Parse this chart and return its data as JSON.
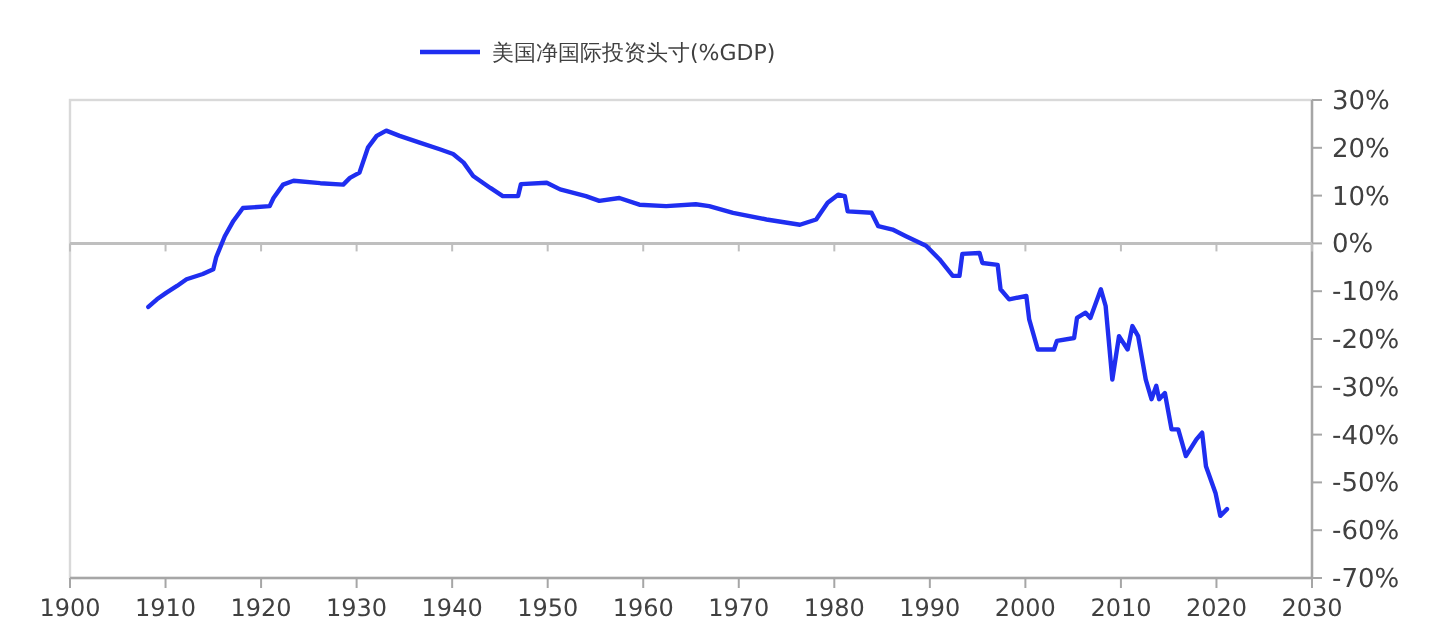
{
  "chart_data": {
    "type": "line",
    "legend": "top",
    "grid": false,
    "xlim": [
      1900,
      2030
    ],
    "xticks": [
      1900,
      1910,
      1920,
      1930,
      1940,
      1950,
      1960,
      1970,
      1980,
      1990,
      2000,
      2010,
      2020,
      2030
    ],
    "ylim": [
      -70,
      30
    ],
    "yticks": [
      {
        "value": 30,
        "label": "30%"
      },
      {
        "value": 20,
        "label": "20%"
      },
      {
        "value": 10,
        "label": "10%"
      },
      {
        "value": 0,
        "label": "0%"
      },
      {
        "value": -10,
        "label": "-10%"
      },
      {
        "value": -20,
        "label": "-20%"
      },
      {
        "value": -30,
        "label": "-30%"
      },
      {
        "value": -40,
        "label": "-40%"
      },
      {
        "value": -50,
        "label": "-50%"
      },
      {
        "value": -60,
        "label": "-60%"
      },
      {
        "value": -70,
        "label": "-70%"
      }
    ],
    "ref_lines": [
      {
        "axis": "y",
        "value": 0,
        "color": "#bfbfbf"
      }
    ],
    "series": [
      {
        "name": "美国净国际投资头寸(%GDP)",
        "color": "#1f2ef0",
        "x": [
          1908.2,
          1909.1,
          1910.1,
          1911.2,
          1912.2,
          1913.9,
          1915,
          1915.3,
          1916.2,
          1917.1,
          1918.1,
          1920.9,
          1921.3,
          1922.3,
          1923.4,
          1926.2,
          1928.6,
          1929.3,
          1930.3,
          1931.2,
          1932.1,
          1933.1,
          1934.5,
          1936.6,
          1938.7,
          1940.1,
          1941.2,
          1942.2,
          1944,
          1945.3,
          1946.9,
          1947.2,
          1949.9,
          1951.3,
          1954,
          1955.4,
          1957.5,
          1959.6,
          1962.4,
          1965.5,
          1966.9,
          1969.4,
          1972.9,
          1976.4,
          1978.1,
          1979.3,
          1980.4,
          1981.1,
          1981.4,
          1983.9,
          1984.6,
          1986.1,
          1987.5,
          1989.6,
          1991,
          1992.4,
          1993.1,
          1993.4,
          1995.2,
          1995.5,
          1997.1,
          1997.4,
          1998.3,
          2000.1,
          2000.4,
          2001.3,
          2003,
          2003.3,
          2005.1,
          2005.4,
          2006.3,
          2006.8,
          2007.9,
          2008.4,
          2009.1,
          2009.8,
          2010.7,
          2011.2,
          2011.8,
          2012.6,
          2013.2,
          2013.7,
          2014,
          2014.6,
          2015.3,
          2016,
          2016.8,
          2017.9,
          2018.5,
          2018.9,
          2019.9,
          2020.4,
          2021.1
        ],
        "values": [
          -13.3,
          -11.7,
          -10.3,
          -8.9,
          -7.5,
          -6.4,
          -5.4,
          -2.9,
          1.5,
          4.7,
          7.4,
          7.8,
          9.5,
          12.3,
          13.1,
          12.6,
          12.3,
          13.7,
          14.8,
          20.1,
          22.5,
          23.6,
          22.5,
          21.1,
          19.7,
          18.7,
          16.9,
          14.1,
          11.6,
          9.9,
          9.9,
          12.4,
          12.7,
          11.3,
          9.9,
          8.9,
          9.5,
          8.1,
          7.8,
          8.2,
          7.8,
          6.4,
          5.0,
          3.9,
          5.0,
          8.5,
          10.2,
          9.9,
          6.7,
          6.4,
          3.6,
          2.9,
          1.5,
          -0.5,
          -3.3,
          -6.8,
          -6.8,
          -2.2,
          -2.0,
          -4.1,
          -4.5,
          -9.6,
          -11.7,
          -11.0,
          -15.9,
          -22.2,
          -22.2,
          -20.4,
          -19.8,
          -15.6,
          -14.5,
          -15.6,
          -9.6,
          -13.1,
          -28.5,
          -19.4,
          -22.2,
          -17.3,
          -19.4,
          -28.5,
          -32.6,
          -29.8,
          -32.6,
          -31.3,
          -38.9,
          -38.9,
          -44.5,
          -41.0,
          -39.6,
          -46.6,
          -52.2,
          -57.0,
          -55.6
        ]
      }
    ]
  }
}
